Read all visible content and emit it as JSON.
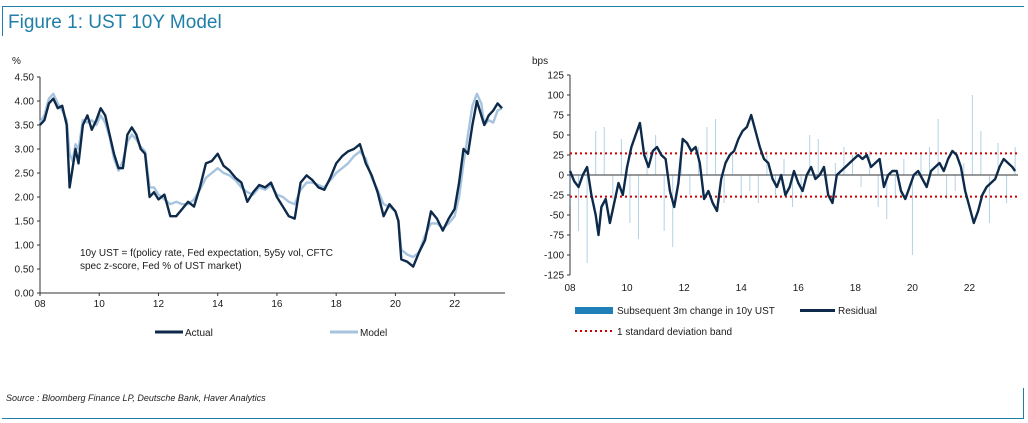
{
  "figure_title": "Figure 1: UST 10Y Model",
  "source": "Source : Bloomberg Finance LP, Deutsche Bank, Haver Analytics",
  "colors": {
    "navy": "#0e2a4a",
    "light_blue": "#a7c4de",
    "bar_blue": "#1f7fb8",
    "dotted_red": "#cc0000",
    "frame": "#1f7fa8"
  },
  "chart_data": [
    {
      "type": "line",
      "title": "",
      "ylabel": "%",
      "xlabel": "",
      "ylim": [
        0,
        4.5
      ],
      "xlim": [
        2008,
        2023.7
      ],
      "x_ticks": [
        "08",
        "10",
        "12",
        "14",
        "16",
        "18",
        "20",
        "22"
      ],
      "y_ticks": [
        "0.00",
        "0.50",
        "1.00",
        "1.50",
        "2.00",
        "2.50",
        "3.00",
        "3.50",
        "4.00",
        "4.50"
      ],
      "annotation": [
        "10y UST = f(policy rate, Fed expectation, 5y5y vol, CFTC",
        "spec z-score, Fed % of UST market)"
      ],
      "legend": [
        "Actual",
        "Model"
      ],
      "series": [
        {
          "name": "Actual",
          "x": [
            2008.0,
            2008.15,
            2008.3,
            2008.45,
            2008.6,
            2008.75,
            2008.9,
            2009.0,
            2009.1,
            2009.2,
            2009.3,
            2009.45,
            2009.6,
            2009.75,
            2009.9,
            2010.05,
            2010.2,
            2010.35,
            2010.5,
            2010.65,
            2010.8,
            2010.95,
            2011.1,
            2011.25,
            2011.4,
            2011.55,
            2011.7,
            2011.85,
            2012.0,
            2012.2,
            2012.4,
            2012.6,
            2012.8,
            2013.0,
            2013.2,
            2013.4,
            2013.6,
            2013.8,
            2014.0,
            2014.2,
            2014.4,
            2014.6,
            2014.8,
            2015.0,
            2015.2,
            2015.4,
            2015.6,
            2015.8,
            2016.0,
            2016.2,
            2016.4,
            2016.6,
            2016.8,
            2017.0,
            2017.2,
            2017.4,
            2017.6,
            2017.8,
            2018.0,
            2018.2,
            2018.4,
            2018.6,
            2018.8,
            2019.0,
            2019.2,
            2019.4,
            2019.6,
            2019.8,
            2020.0,
            2020.1,
            2020.2,
            2020.4,
            2020.6,
            2020.8,
            2021.0,
            2021.2,
            2021.4,
            2021.6,
            2021.8,
            2022.0,
            2022.15,
            2022.3,
            2022.45,
            2022.6,
            2022.75,
            2022.9,
            2023.0,
            2023.15,
            2023.3,
            2023.45,
            2023.6
          ],
          "values": [
            3.5,
            3.6,
            3.95,
            4.05,
            3.85,
            3.9,
            3.5,
            2.2,
            2.6,
            3.0,
            2.7,
            3.5,
            3.7,
            3.4,
            3.6,
            3.85,
            3.7,
            3.3,
            2.9,
            2.6,
            2.6,
            3.3,
            3.45,
            3.3,
            3.0,
            2.9,
            2.0,
            2.1,
            1.95,
            2.05,
            1.6,
            1.6,
            1.75,
            1.9,
            1.8,
            2.2,
            2.7,
            2.75,
            2.9,
            2.65,
            2.55,
            2.4,
            2.3,
            1.9,
            2.1,
            2.25,
            2.2,
            2.3,
            2.0,
            1.8,
            1.6,
            1.55,
            2.3,
            2.45,
            2.35,
            2.2,
            2.15,
            2.4,
            2.7,
            2.85,
            2.95,
            3.0,
            3.1,
            2.7,
            2.45,
            2.1,
            1.6,
            1.85,
            1.7,
            1.5,
            0.7,
            0.65,
            0.55,
            0.85,
            1.1,
            1.7,
            1.55,
            1.3,
            1.55,
            1.75,
            2.3,
            3.0,
            2.9,
            3.5,
            4.0,
            3.7,
            3.5,
            3.7,
            3.8,
            3.95,
            3.85
          ]
        },
        {
          "name": "Model",
          "x": [
            2008.0,
            2008.15,
            2008.3,
            2008.45,
            2008.6,
            2008.75,
            2008.9,
            2009.0,
            2009.1,
            2009.2,
            2009.3,
            2009.45,
            2009.6,
            2009.75,
            2009.9,
            2010.05,
            2010.2,
            2010.35,
            2010.5,
            2010.65,
            2010.8,
            2010.95,
            2011.1,
            2011.25,
            2011.4,
            2011.55,
            2011.7,
            2011.85,
            2012.0,
            2012.2,
            2012.4,
            2012.6,
            2012.8,
            2013.0,
            2013.2,
            2013.4,
            2013.6,
            2013.8,
            2014.0,
            2014.2,
            2014.4,
            2014.6,
            2014.8,
            2015.0,
            2015.2,
            2015.4,
            2015.6,
            2015.8,
            2016.0,
            2016.2,
            2016.4,
            2016.6,
            2016.8,
            2017.0,
            2017.2,
            2017.4,
            2017.6,
            2017.8,
            2018.0,
            2018.2,
            2018.4,
            2018.6,
            2018.8,
            2019.0,
            2019.2,
            2019.4,
            2019.6,
            2019.8,
            2020.0,
            2020.1,
            2020.2,
            2020.4,
            2020.6,
            2020.8,
            2021.0,
            2021.2,
            2021.4,
            2021.6,
            2021.8,
            2022.0,
            2022.15,
            2022.3,
            2022.45,
            2022.6,
            2022.75,
            2022.9,
            2023.0,
            2023.15,
            2023.3,
            2023.45,
            2023.6
          ],
          "values": [
            3.55,
            3.7,
            4.05,
            4.15,
            3.95,
            3.8,
            3.6,
            2.9,
            2.75,
            3.1,
            3.0,
            3.6,
            3.55,
            3.6,
            3.5,
            3.7,
            3.55,
            3.25,
            2.8,
            2.55,
            2.75,
            3.15,
            3.3,
            3.2,
            3.05,
            2.95,
            2.2,
            2.2,
            2.05,
            1.95,
            1.85,
            1.9,
            1.85,
            1.85,
            1.95,
            2.15,
            2.4,
            2.5,
            2.6,
            2.5,
            2.45,
            2.35,
            2.2,
            2.1,
            2.05,
            2.2,
            2.15,
            2.25,
            2.05,
            2.0,
            1.9,
            1.85,
            2.15,
            2.3,
            2.3,
            2.25,
            2.2,
            2.35,
            2.5,
            2.6,
            2.7,
            2.85,
            2.95,
            2.8,
            2.4,
            2.15,
            1.85,
            1.8,
            1.7,
            1.5,
            0.9,
            0.8,
            0.75,
            0.85,
            1.2,
            1.45,
            1.45,
            1.35,
            1.45,
            1.6,
            2.0,
            2.7,
            3.3,
            3.9,
            4.15,
            3.95,
            3.5,
            3.6,
            3.55,
            3.8,
            3.85
          ]
        }
      ]
    },
    {
      "type": "bar",
      "title": "",
      "ylabel": "bps",
      "xlabel": "",
      "ylim": [
        -125,
        125
      ],
      "xlim": [
        2008,
        2023.7
      ],
      "x_ticks": [
        "08",
        "10",
        "12",
        "14",
        "16",
        "18",
        "20",
        "22"
      ],
      "y_ticks": [
        "-125",
        "-100",
        "-75",
        "-50",
        "-25",
        "0",
        "25",
        "50",
        "75",
        "100",
        "125"
      ],
      "std_band": [
        27,
        -27
      ],
      "legend": [
        "Subsequent 3m change in 10y UST",
        "Residual",
        "1 standard deviation band"
      ],
      "series": [
        {
          "name": "Subsequent 3m change in 10y UST",
          "type": "bar",
          "x": [
            2008.0,
            2008.3,
            2008.6,
            2008.9,
            2009.2,
            2009.5,
            2009.8,
            2010.1,
            2010.4,
            2010.7,
            2011.0,
            2011.3,
            2011.6,
            2011.9,
            2012.2,
            2012.5,
            2012.8,
            2013.1,
            2013.4,
            2013.7,
            2014.0,
            2014.3,
            2014.6,
            2014.9,
            2015.2,
            2015.5,
            2015.8,
            2016.1,
            2016.4,
            2016.7,
            2017.0,
            2017.3,
            2017.6,
            2017.9,
            2018.2,
            2018.5,
            2018.8,
            2019.1,
            2019.4,
            2019.7,
            2020.0,
            2020.3,
            2020.6,
            2020.9,
            2021.2,
            2021.5,
            2021.8,
            2022.1,
            2022.4,
            2022.7,
            2023.0,
            2023.3,
            2023.6
          ],
          "values": [
            -40,
            -70,
            -110,
            55,
            60,
            -30,
            45,
            -60,
            -80,
            30,
            50,
            -70,
            -90,
            20,
            -25,
            35,
            60,
            70,
            -35,
            25,
            -30,
            -20,
            -35,
            30,
            -25,
            20,
            -40,
            -30,
            50,
            45,
            -20,
            15,
            35,
            25,
            -15,
            30,
            -40,
            -55,
            -30,
            20,
            -100,
            25,
            35,
            70,
            -30,
            -20,
            15,
            100,
            55,
            -60,
            40,
            -35,
            35
          ]
        },
        {
          "name": "Residual",
          "type": "line",
          "x": [
            2008.0,
            2008.15,
            2008.3,
            2008.45,
            2008.6,
            2008.75,
            2008.9,
            2009.0,
            2009.1,
            2009.25,
            2009.4,
            2009.55,
            2009.7,
            2009.85,
            2010.0,
            2010.15,
            2010.3,
            2010.45,
            2010.6,
            2010.75,
            2010.9,
            2011.05,
            2011.2,
            2011.35,
            2011.5,
            2011.65,
            2011.8,
            2011.95,
            2012.1,
            2012.25,
            2012.4,
            2012.55,
            2012.7,
            2012.85,
            2013.0,
            2013.15,
            2013.3,
            2013.45,
            2013.6,
            2013.75,
            2013.9,
            2014.05,
            2014.2,
            2014.35,
            2014.5,
            2014.65,
            2014.8,
            2014.95,
            2015.1,
            2015.25,
            2015.4,
            2015.55,
            2015.7,
            2015.85,
            2016.0,
            2016.15,
            2016.3,
            2016.45,
            2016.6,
            2016.75,
            2016.9,
            2017.05,
            2017.2,
            2017.35,
            2017.5,
            2017.65,
            2017.8,
            2017.95,
            2018.1,
            2018.25,
            2018.4,
            2018.55,
            2018.7,
            2018.85,
            2019.0,
            2019.15,
            2019.3,
            2019.45,
            2019.6,
            2019.75,
            2019.9,
            2020.05,
            2020.2,
            2020.35,
            2020.5,
            2020.65,
            2020.8,
            2020.95,
            2021.1,
            2021.25,
            2021.4,
            2021.55,
            2021.7,
            2021.85,
            2022.0,
            2022.15,
            2022.3,
            2022.45,
            2022.6,
            2022.75,
            2022.9,
            2023.05,
            2023.2,
            2023.35,
            2023.5,
            2023.6
          ],
          "values": [
            5,
            -8,
            -15,
            0,
            10,
            -25,
            -50,
            -75,
            -40,
            -30,
            -60,
            -35,
            -10,
            -25,
            10,
            35,
            50,
            65,
            25,
            10,
            30,
            35,
            25,
            20,
            -20,
            -40,
            -10,
            45,
            40,
            30,
            35,
            15,
            -30,
            -20,
            -35,
            -45,
            -5,
            15,
            25,
            30,
            45,
            55,
            60,
            75,
            55,
            35,
            20,
            15,
            -5,
            -15,
            0,
            -25,
            -15,
            5,
            -10,
            -20,
            0,
            10,
            -5,
            0,
            10,
            -25,
            -35,
            0,
            5,
            10,
            15,
            20,
            25,
            20,
            25,
            10,
            15,
            20,
            -15,
            0,
            5,
            5,
            -20,
            -30,
            -15,
            0,
            5,
            -5,
            -15,
            5,
            10,
            15,
            5,
            20,
            30,
            25,
            10,
            -20,
            -40,
            -60,
            -45,
            -25,
            -15,
            -10,
            -5,
            10,
            20,
            15,
            10,
            5
          ]
        }
      ]
    }
  ]
}
